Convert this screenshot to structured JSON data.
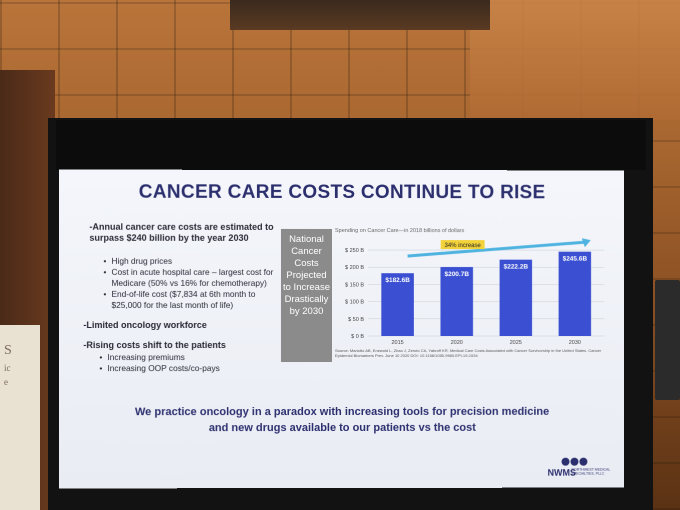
{
  "slide": {
    "title": "CANCER CARE COSTS CONTINUE TO RISE",
    "intro_line1": "-Annual cancer care costs are estimated to",
    "intro_line2": "surpass $240 billion by the year 2030",
    "bullets_a": [
      "High drug prices",
      "Cost in acute hospital care – largest cost for",
      "Medicare (50% vs 16% for chemotherapy)",
      "End-of-life cost ($7,834 at 6th month to",
      "$25,000 for the last month of life)"
    ],
    "limited": "-Limited oncology workforce",
    "rising": "-Rising costs shift to the patients",
    "bullets_b": [
      "Increasing premiums",
      "Increasing OOP costs/co-pays"
    ],
    "sidebox": [
      "National",
      "Cancer",
      "Costs",
      "Projected",
      "to Increase",
      "Drastically",
      "by 2030"
    ],
    "chart_subtitle": "Spending on Cancer Care—in 2018 billions of dollars",
    "footnote": "Source: Mariotto AB, Enewold L, Zhao J, Zeruto CA, Yabroff KR. Medical Care Costs Associated with Cancer Survivorship in the United States. Cancer Epidemiol Biomarkers Prev. June 10 2020 DOI: 10.1158/1055-9965.EPI-19-1534",
    "bottom_line1": "We practice oncology in a paradox with increasing tools for precision medicine",
    "bottom_line2": "and new drugs available to our patients vs the cost",
    "logo_name": "NWMS",
    "logo_sub": "NORTHWEST MEDICAL SPECIALTIES, PLLC"
  },
  "podium": {
    "letters": [
      "S",
      "ic",
      "e"
    ]
  },
  "chart_data": {
    "type": "bar",
    "categories": [
      "2015",
      "2020",
      "2025",
      "2030"
    ],
    "values": [
      182.6,
      200.7,
      222.2,
      245.6
    ],
    "data_labels": [
      "$182.6B",
      "$200.7B",
      "$222.2B",
      "$245.6B"
    ],
    "y_ticks": [
      "$ 0 B",
      "$ 50 B",
      "$ 100 B",
      "$ 150 B",
      "$ 200 B",
      "$ 250 B"
    ],
    "ylim": [
      0,
      250
    ],
    "annotation": "34% increase",
    "title": "Spending on Cancer Care—in 2018 billions of dollars",
    "xlabel": "",
    "ylabel": "",
    "grid": true,
    "bar_color": "#3a4fd1",
    "arrow_color": "#4fb3e0",
    "annotation_color": "#f3d23a"
  }
}
